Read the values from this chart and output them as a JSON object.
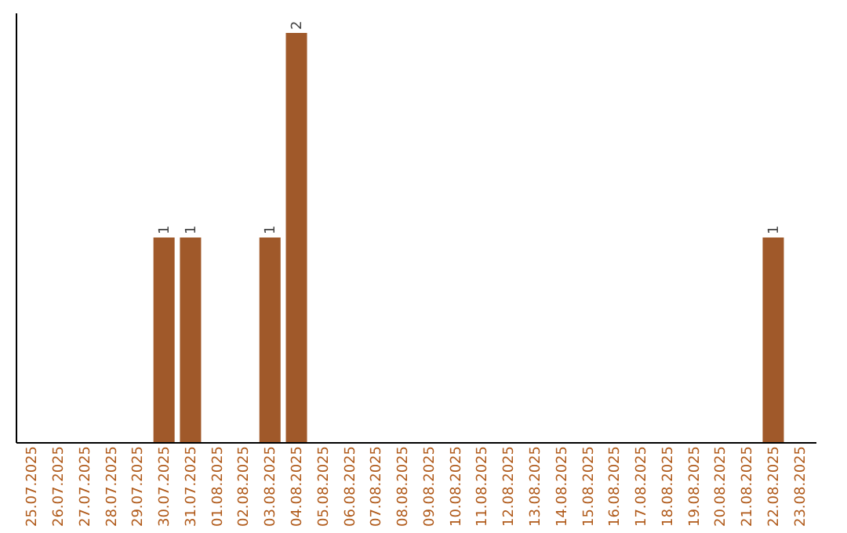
{
  "chart_data": {
    "type": "bar",
    "categories": [
      "25.07.2025",
      "26.07.2025",
      "27.07.2025",
      "28.07.2025",
      "29.07.2025",
      "30.07.2025",
      "31.07.2025",
      "01.08.2025",
      "02.08.2025",
      "03.08.2025",
      "04.08.2025",
      "05.08.2025",
      "06.08.2025",
      "07.08.2025",
      "08.08.2025",
      "09.08.2025",
      "10.08.2025",
      "11.08.2025",
      "12.08.2025",
      "13.08.2025",
      "14.08.2025",
      "15.08.2025",
      "16.08.2025",
      "17.08.2025",
      "18.08.2025",
      "19.08.2025",
      "20.08.2025",
      "21.08.2025",
      "22.08.2025",
      "23.08.2025"
    ],
    "values": [
      0,
      0,
      0,
      0,
      0,
      1,
      1,
      0,
      0,
      1,
      2,
      0,
      0,
      0,
      0,
      0,
      0,
      0,
      0,
      0,
      0,
      0,
      0,
      0,
      0,
      0,
      0,
      0,
      1,
      0
    ],
    "value_labels": [
      null,
      null,
      null,
      null,
      null,
      "1",
      "1",
      null,
      null,
      "1",
      "2",
      null,
      null,
      null,
      null,
      null,
      null,
      null,
      null,
      null,
      null,
      null,
      null,
      null,
      null,
      null,
      null,
      null,
      "1",
      null
    ],
    "color": "#a0592a",
    "ylim": [
      0,
      2.1
    ],
    "tick_labels": "x",
    "grid": false
  }
}
